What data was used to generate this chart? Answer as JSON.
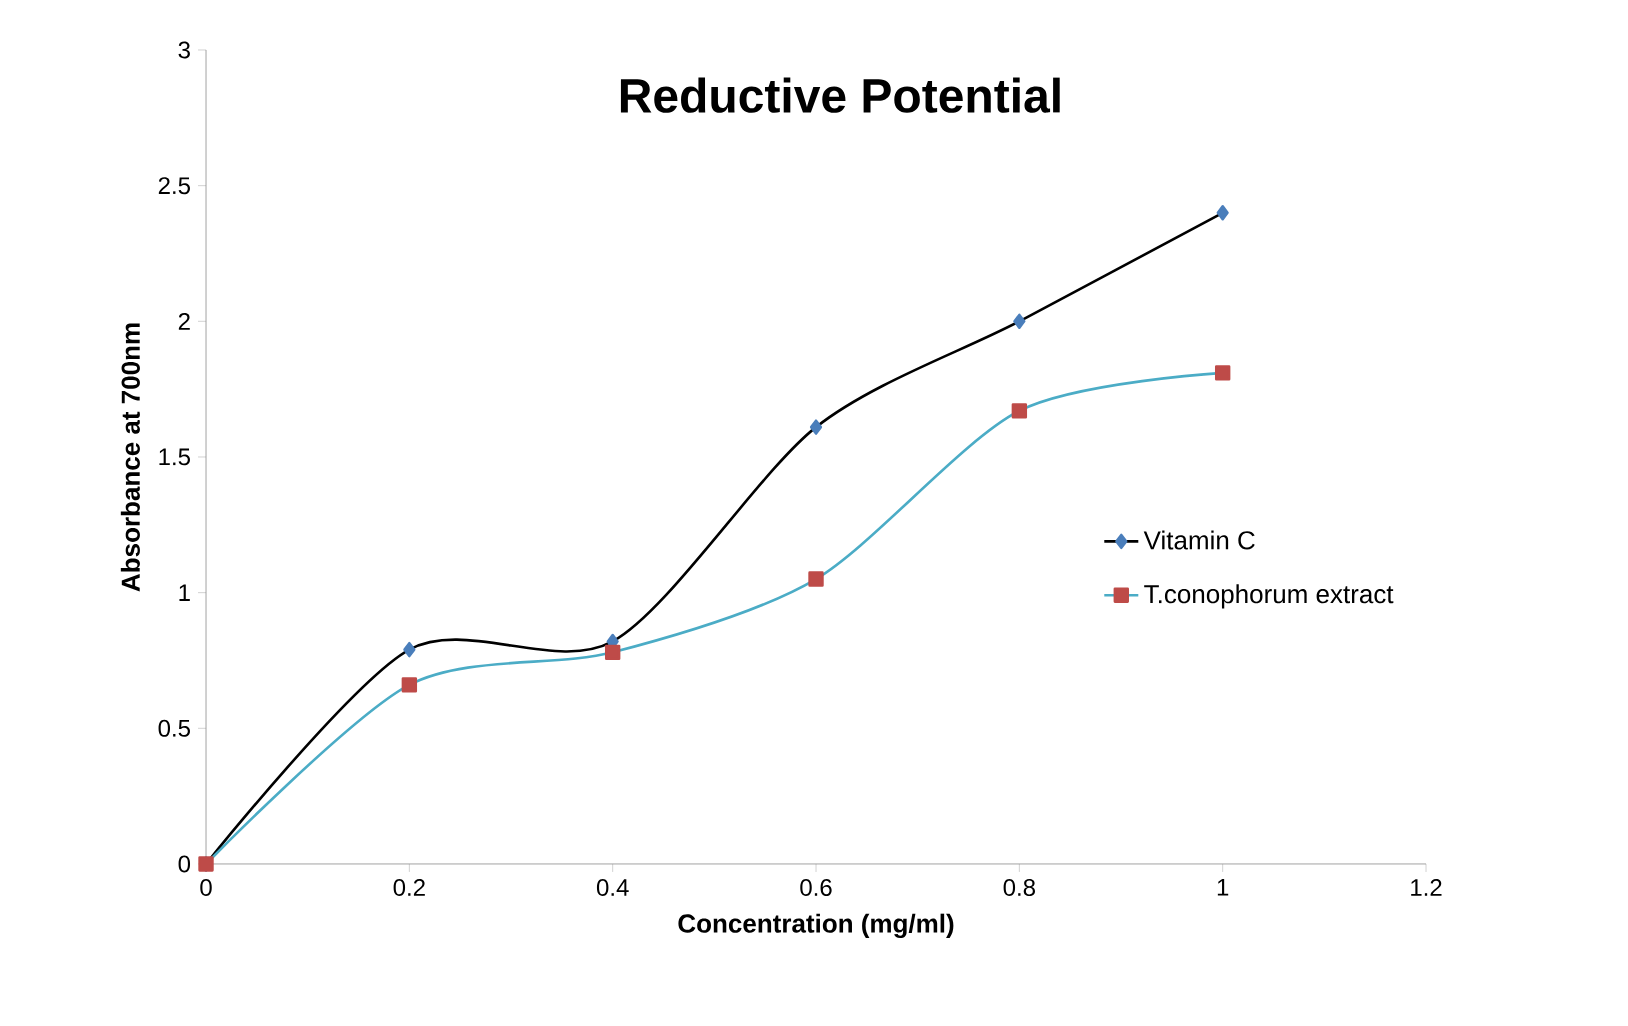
{
  "chart_data": {
    "type": "line",
    "title": "Reductive Potential",
    "xlabel": "Concentration (mg/ml)",
    "ylabel": "Absorbance at 700nm",
    "x": [
      0,
      0.2,
      0.4,
      0.6,
      0.8,
      1
    ],
    "series": [
      {
        "name": "Vitamin C",
        "color": "#4a7ebb",
        "marker": "diamond",
        "values": [
          0,
          0.79,
          0.82,
          1.61,
          2.0,
          2.4
        ]
      },
      {
        "name": "T.conophorum extract",
        "color": "#be4b48",
        "marker": "square",
        "values": [
          0,
          0.66,
          0.78,
          1.05,
          1.67,
          1.81
        ]
      }
    ],
    "xlim": [
      0,
      1.2
    ],
    "ylim": [
      0,
      3
    ],
    "xticks": [
      0,
      0.2,
      0.4,
      0.6,
      0.8,
      1,
      1.2
    ],
    "yticks": [
      0,
      0.5,
      1,
      1.5,
      2,
      2.5,
      3
    ],
    "grid": false,
    "legend": "right"
  }
}
